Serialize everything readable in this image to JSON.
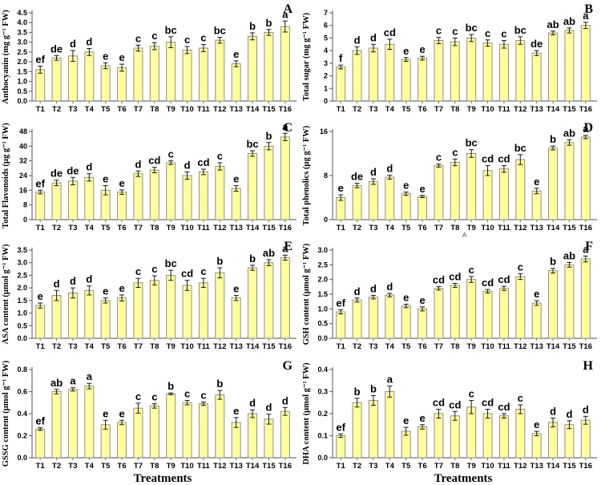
{
  "figure": {
    "stray_annotation": "A",
    "colors": {
      "bar_fill": "#FFFF9C",
      "bar_stroke": "#8F8F8F",
      "error_bar": "#1A1A1A",
      "axis": "#707070",
      "text": "#000000"
    }
  },
  "chart_data": [
    {
      "type": "bar",
      "panel": "A",
      "ylabel": "Anthocyanin (mg g⁻¹ FW)",
      "xlabel": "",
      "ylim": [
        0,
        4.5
      ],
      "ytick_step": 0.5,
      "ytick_decimals": 1,
      "categories": [
        "T1",
        "T2",
        "T3",
        "T4",
        "T5",
        "T6",
        "T7",
        "T8",
        "T9",
        "T10",
        "T11",
        "T12",
        "T13",
        "T14",
        "T15",
        "T16"
      ],
      "values": [
        1.6,
        2.2,
        2.3,
        2.5,
        1.8,
        1.7,
        2.7,
        2.8,
        3.0,
        2.6,
        2.7,
        3.1,
        1.9,
        3.3,
        3.5,
        3.8
      ],
      "errors": [
        0.18,
        0.12,
        0.28,
        0.18,
        0.15,
        0.18,
        0.15,
        0.18,
        0.28,
        0.18,
        0.18,
        0.15,
        0.15,
        0.18,
        0.15,
        0.28
      ],
      "sig_letters": [
        "ef",
        "de",
        "d",
        "d",
        "e",
        "e",
        "c",
        "c",
        "bc",
        "c",
        "c",
        "bc",
        "e",
        "b",
        "b",
        "a"
      ]
    },
    {
      "type": "bar",
      "panel": "B",
      "ylabel": "Total sugar (mg g⁻¹ FW)",
      "xlabel": "",
      "ylim": [
        0,
        7
      ],
      "ytick_step": 1,
      "ytick_decimals": 0,
      "categories": [
        "T1",
        "T2",
        "T3",
        "T4",
        "T5",
        "T6",
        "T7",
        "T8",
        "T9",
        "T10",
        "T11",
        "T12",
        "T13",
        "T14",
        "T15",
        "T16"
      ],
      "values": [
        2.7,
        4.0,
        4.2,
        4.5,
        3.3,
        3.4,
        4.8,
        4.7,
        5.0,
        4.6,
        4.5,
        4.8,
        3.8,
        5.4,
        5.6,
        6.0
      ],
      "errors": [
        0.15,
        0.3,
        0.3,
        0.4,
        0.15,
        0.15,
        0.25,
        0.3,
        0.28,
        0.25,
        0.3,
        0.3,
        0.2,
        0.15,
        0.2,
        0.25
      ],
      "sig_letters": [
        "f",
        "d",
        "d",
        "cd",
        "e",
        "e",
        "c",
        "c",
        "bc",
        "c",
        "c",
        "bc",
        "de",
        "ab",
        "ab",
        "a"
      ]
    },
    {
      "type": "bar",
      "panel": "C",
      "ylabel": "Total Flavonoids (µg g⁻¹ FW)",
      "xlabel": "",
      "ylim": [
        0,
        48
      ],
      "ytick_step": 8,
      "ytick_decimals": 0,
      "categories": [
        "T1",
        "T2",
        "T3",
        "T4",
        "T5",
        "T6",
        "T7",
        "T8",
        "T9",
        "T10",
        "T11",
        "T12",
        "T13",
        "T14",
        "T15",
        "T16"
      ],
      "values": [
        15,
        20,
        21,
        23,
        16,
        15,
        25,
        27,
        31,
        24,
        26,
        29,
        17,
        36,
        40,
        45
      ],
      "errors": [
        1.0,
        1.5,
        2.0,
        2.0,
        2.5,
        1.2,
        1.5,
        1.5,
        1.0,
        2.0,
        1.5,
        2.0,
        1.5,
        1.5,
        2.0,
        2.0
      ],
      "sig_letters": [
        "ef",
        "de",
        "de",
        "d",
        "e",
        "e",
        "d",
        "cd",
        "c",
        "d",
        "cd",
        "c",
        "e",
        "bc",
        "b",
        "a"
      ]
    },
    {
      "type": "bar",
      "panel": "D",
      "ylabel": "Total phenolics (µg g⁻¹ FW)",
      "xlabel": "",
      "ylim": [
        0,
        16
      ],
      "ytick_step": 8,
      "ytick_decimals": 0,
      "categories": [
        "T1",
        "T2",
        "T3",
        "T4",
        "T5",
        "T6",
        "T7",
        "T8",
        "T9",
        "T10",
        "T11",
        "T12",
        "T13",
        "T14",
        "T15",
        "T16"
      ],
      "values": [
        4.0,
        6.2,
        6.9,
        7.7,
        4.7,
        4.2,
        9.8,
        10.4,
        12.0,
        8.9,
        9.2,
        10.9,
        5.2,
        13.0,
        14.0,
        15.0
      ],
      "errors": [
        0.5,
        0.4,
        0.5,
        0.35,
        0.3,
        0.2,
        0.3,
        0.6,
        0.7,
        0.9,
        0.6,
        0.9,
        0.5,
        0.35,
        0.5,
        0.3
      ],
      "sig_letters": [
        "e",
        "de",
        "d",
        "d",
        "e",
        "e",
        "c",
        "c",
        "bc",
        "cd",
        "cd",
        "bc",
        "e",
        "b",
        "ab",
        "a"
      ]
    },
    {
      "type": "bar",
      "panel": "E",
      "ylabel": "ASA content (µmol g⁻¹ FW)",
      "xlabel": "",
      "ylim": [
        0,
        3.5
      ],
      "ytick_step": 0.5,
      "ytick_decimals": 1,
      "categories": [
        "T1",
        "T2",
        "T3",
        "T4",
        "T5",
        "T6",
        "T7",
        "T8",
        "T9",
        "T10",
        "T11",
        "T12",
        "T13",
        "T14",
        "T15",
        "T16"
      ],
      "values": [
        1.3,
        1.7,
        1.8,
        1.9,
        1.5,
        1.6,
        2.2,
        2.3,
        2.5,
        2.1,
        2.2,
        2.6,
        1.6,
        2.8,
        3.0,
        3.2
      ],
      "errors": [
        0.1,
        0.2,
        0.2,
        0.18,
        0.1,
        0.12,
        0.18,
        0.18,
        0.2,
        0.2,
        0.18,
        0.2,
        0.1,
        0.1,
        0.12,
        0.1
      ],
      "sig_letters": [
        "e",
        "d",
        "d",
        "d",
        "e",
        "e",
        "c",
        "c",
        "bc",
        "cd",
        "c",
        "b",
        "e",
        "b",
        "ab",
        "a"
      ]
    },
    {
      "type": "bar",
      "panel": "F",
      "ylabel": "GSH content (µmol g⁻¹ FW)",
      "xlabel": "",
      "ylim": [
        0,
        3.0
      ],
      "ytick_step": 0.5,
      "ytick_decimals": 1,
      "categories": [
        "T1",
        "T2",
        "T3",
        "T4",
        "T5",
        "T6",
        "T7",
        "T8",
        "T9",
        "T10",
        "T11",
        "T12",
        "T13",
        "T14",
        "T15",
        "T16"
      ],
      "values": [
        0.9,
        1.3,
        1.4,
        1.47,
        1.1,
        1.0,
        1.7,
        1.8,
        2.0,
        1.6,
        1.7,
        2.1,
        1.2,
        2.3,
        2.5,
        2.7
      ],
      "errors": [
        0.07,
        0.07,
        0.06,
        0.06,
        0.06,
        0.07,
        0.06,
        0.07,
        0.1,
        0.06,
        0.07,
        0.1,
        0.08,
        0.08,
        0.08,
        0.1
      ],
      "sig_letters": [
        "ef",
        "d",
        "d",
        "d",
        "e",
        "e",
        "cd",
        "cd",
        "c",
        "cd",
        "cd",
        "c",
        "e",
        "b",
        "ab",
        "a"
      ]
    },
    {
      "type": "bar",
      "panel": "G",
      "ylabel": "GSSG content (µmol g⁻¹ FW)",
      "xlabel": "Treatments",
      "ylim": [
        0,
        0.8
      ],
      "ytick_step": 0.2,
      "ytick_decimals": 1,
      "categories": [
        "T1",
        "T2",
        "T3",
        "T4",
        "T5",
        "T6",
        "T7",
        "T8",
        "T9",
        "T10",
        "T11",
        "T12",
        "T13",
        "T14",
        "T15",
        "T16"
      ],
      "values": [
        0.26,
        0.6,
        0.62,
        0.65,
        0.3,
        0.32,
        0.45,
        0.47,
        0.58,
        0.5,
        0.49,
        0.57,
        0.32,
        0.4,
        0.35,
        0.42
      ],
      "errors": [
        0.012,
        0.02,
        0.015,
        0.025,
        0.04,
        0.02,
        0.045,
        0.02,
        0.008,
        0.02,
        0.015,
        0.04,
        0.045,
        0.035,
        0.045,
        0.035
      ],
      "sig_letters": [
        "ef",
        "ab",
        "a",
        "a",
        "e",
        "e",
        "c",
        "c",
        "b",
        "c",
        "c",
        "b",
        "e",
        "d",
        "d",
        "d"
      ]
    },
    {
      "type": "bar",
      "panel": "H",
      "ylabel": "DHA content (µmol g⁻¹ FW)",
      "xlabel": "Treatments",
      "ylim": [
        0,
        0.4
      ],
      "ytick_step": 0.1,
      "ytick_decimals": 1,
      "categories": [
        "T1",
        "T2",
        "T3",
        "T4",
        "T5",
        "T6",
        "T7",
        "T8",
        "T9",
        "T10",
        "T11",
        "T12",
        "T13",
        "T14",
        "T15",
        "T16"
      ],
      "values": [
        0.1,
        0.25,
        0.26,
        0.3,
        0.12,
        0.14,
        0.2,
        0.19,
        0.23,
        0.2,
        0.19,
        0.22,
        0.11,
        0.16,
        0.15,
        0.17
      ],
      "errors": [
        0.008,
        0.02,
        0.022,
        0.025,
        0.018,
        0.01,
        0.02,
        0.02,
        0.03,
        0.02,
        0.01,
        0.02,
        0.01,
        0.02,
        0.018,
        0.018
      ],
      "sig_letters": [
        "ef",
        "b",
        "b",
        "a",
        "e",
        "e",
        "cd",
        "cd",
        "c",
        "cd",
        "cd",
        "c",
        "e",
        "d",
        "d",
        "d"
      ]
    }
  ]
}
